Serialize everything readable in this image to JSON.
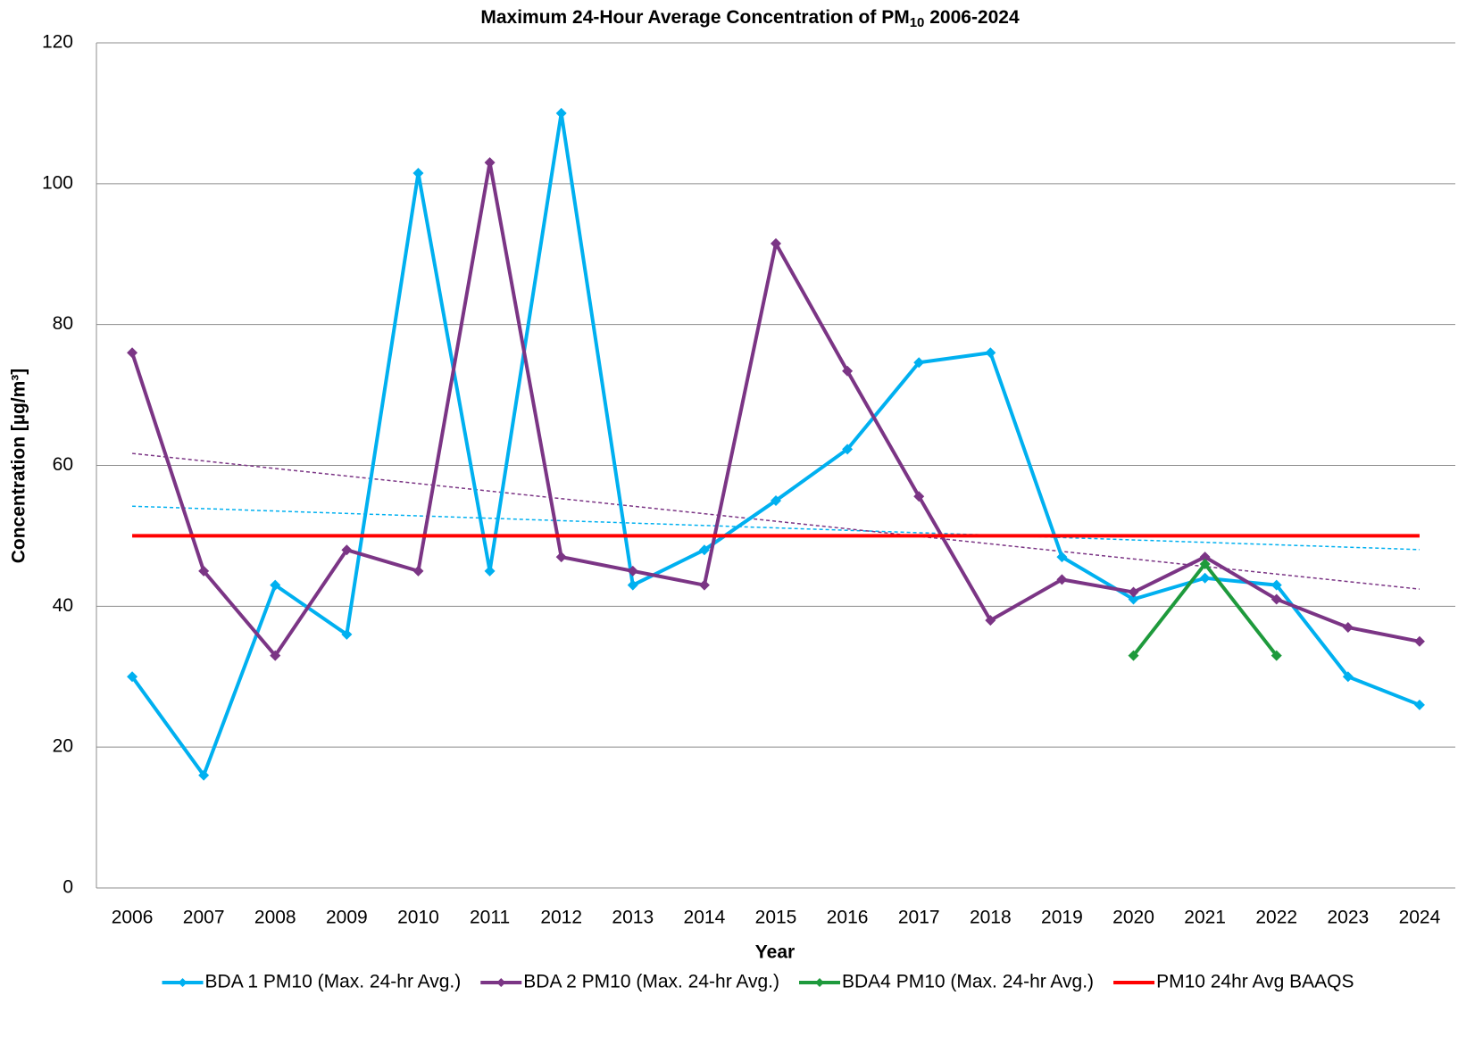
{
  "chart_data": {
    "type": "line",
    "title": {
      "text": "Maximum 24-Hour Average Concentration of PM",
      "subscript": "10",
      "tail": " 2006-2024"
    },
    "x_label": "Year",
    "y_label": "Concentration [µg/m³]",
    "categories": [
      "2006",
      "2007",
      "2008",
      "2009",
      "2010",
      "2011",
      "2012",
      "2013",
      "2014",
      "2015",
      "2016",
      "2017",
      "2018",
      "2019",
      "2020",
      "2021",
      "2022",
      "2023",
      "2024"
    ],
    "series": [
      {
        "name": "BDA 1 PM10 (Max. 24-hr Avg.)",
        "color": "#00b0f0",
        "markers": true,
        "trendline": true,
        "values": [
          30,
          16,
          43,
          36,
          101.5,
          45,
          110,
          43,
          48,
          55,
          62.3,
          74.6,
          76,
          47,
          41,
          44,
          43,
          30,
          26
        ]
      },
      {
        "name": "BDA 2 PM10 (Max. 24-hr Avg.)",
        "color": "#7b3585",
        "markers": true,
        "trendline": true,
        "values": [
          76,
          45,
          33,
          48,
          45,
          103,
          47,
          45,
          43,
          91.5,
          73.4,
          55.6,
          38,
          43.8,
          42,
          47,
          41,
          37,
          35
        ]
      },
      {
        "name": "BDA4 PM10 (Max. 24-hr Avg.)",
        "color": "#1e9a3c",
        "markers": true,
        "trendline": false,
        "values": [
          null,
          null,
          null,
          null,
          null,
          null,
          null,
          null,
          null,
          null,
          null,
          null,
          null,
          null,
          33,
          46,
          33,
          null,
          null
        ]
      },
      {
        "name": "PM10 24hr Avg BAAQS",
        "color": "#ff0000",
        "markers": false,
        "trendline": false,
        "values": [
          50,
          50,
          50,
          50,
          50,
          50,
          50,
          50,
          50,
          50,
          50,
          50,
          50,
          50,
          50,
          50,
          50,
          50,
          50
        ]
      }
    ],
    "ylim": [
      0,
      120
    ],
    "yticks": [
      0,
      20,
      40,
      60,
      80,
      100,
      120
    ],
    "grid": true,
    "legend": "bottom"
  }
}
